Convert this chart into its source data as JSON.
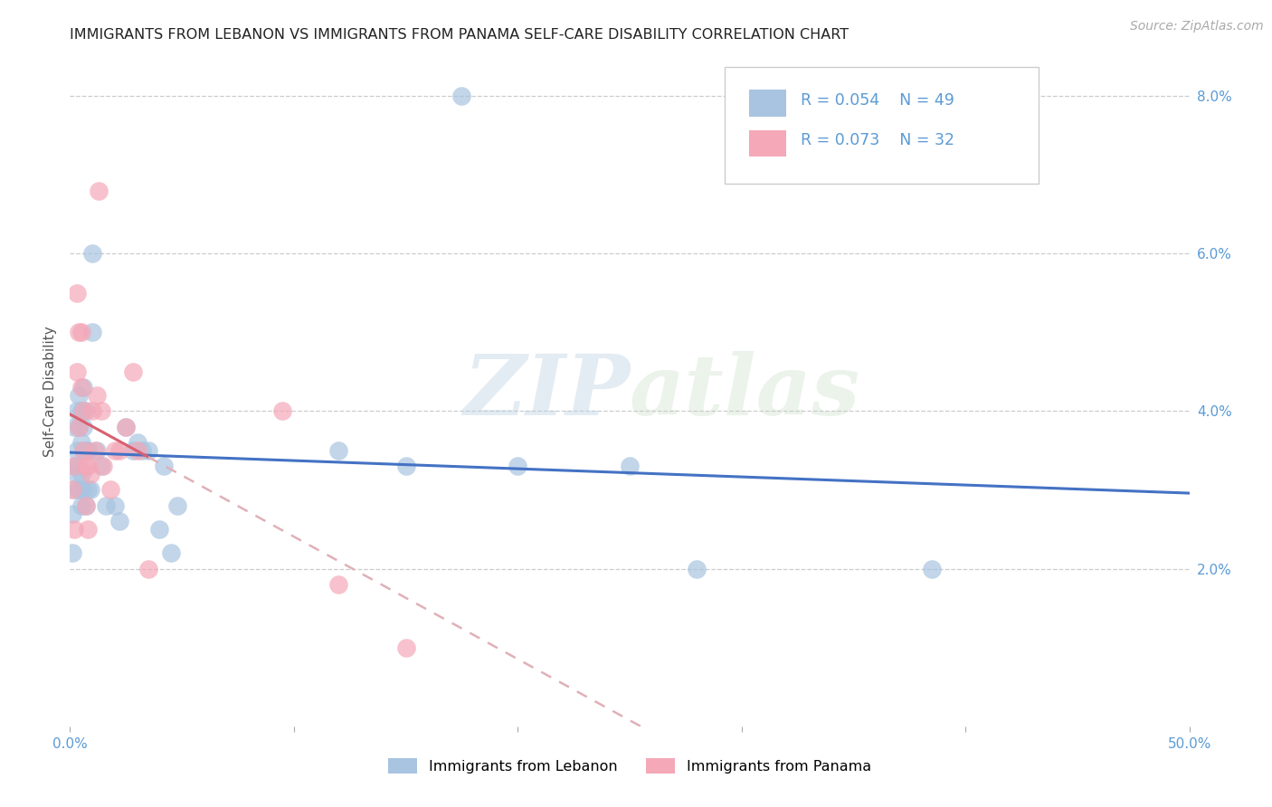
{
  "title": "IMMIGRANTS FROM LEBANON VS IMMIGRANTS FROM PANAMA SELF-CARE DISABILITY CORRELATION CHART",
  "source": "Source: ZipAtlas.com",
  "ylabel": "Self-Care Disability",
  "xlim": [
    0.0,
    0.5
  ],
  "ylim": [
    0.0,
    0.085
  ],
  "color_lebanon": "#a8c4e0",
  "color_panama": "#f4a8b8",
  "color_lebanon_line": "#4472c4",
  "color_panama_line": "#d96070",
  "color_panama_dash": "#e0b0b8",
  "watermark_color": "#d0e0ee",
  "lebanon_x": [
    0.001,
    0.001,
    0.002,
    0.002,
    0.002,
    0.003,
    0.003,
    0.003,
    0.004,
    0.004,
    0.004,
    0.004,
    0.005,
    0.005,
    0.005,
    0.005,
    0.006,
    0.006,
    0.006,
    0.006,
    0.007,
    0.007,
    0.007,
    0.008,
    0.008,
    0.009,
    0.01,
    0.01,
    0.012,
    0.014,
    0.016,
    0.02,
    0.022,
    0.025,
    0.028,
    0.03,
    0.032,
    0.035,
    0.04,
    0.042,
    0.045,
    0.048,
    0.12,
    0.15,
    0.175,
    0.2,
    0.25,
    0.28,
    0.385
  ],
  "lebanon_y": [
    0.027,
    0.022,
    0.03,
    0.033,
    0.038,
    0.032,
    0.035,
    0.04,
    0.042,
    0.038,
    0.033,
    0.03,
    0.04,
    0.036,
    0.032,
    0.028,
    0.043,
    0.038,
    0.035,
    0.03,
    0.04,
    0.035,
    0.028,
    0.035,
    0.03,
    0.03,
    0.06,
    0.05,
    0.035,
    0.033,
    0.028,
    0.028,
    0.026,
    0.038,
    0.035,
    0.036,
    0.035,
    0.035,
    0.025,
    0.033,
    0.022,
    0.028,
    0.035,
    0.033,
    0.08,
    0.033,
    0.033,
    0.02,
    0.02
  ],
  "panama_x": [
    0.001,
    0.002,
    0.002,
    0.003,
    0.003,
    0.004,
    0.004,
    0.005,
    0.005,
    0.006,
    0.006,
    0.007,
    0.007,
    0.008,
    0.008,
    0.009,
    0.01,
    0.011,
    0.012,
    0.013,
    0.014,
    0.015,
    0.018,
    0.02,
    0.022,
    0.025,
    0.028,
    0.03,
    0.035,
    0.095,
    0.12,
    0.15
  ],
  "panama_y": [
    0.03,
    0.033,
    0.025,
    0.045,
    0.055,
    0.038,
    0.05,
    0.043,
    0.05,
    0.04,
    0.035,
    0.033,
    0.028,
    0.033,
    0.025,
    0.032,
    0.04,
    0.035,
    0.042,
    0.068,
    0.04,
    0.033,
    0.03,
    0.035,
    0.035,
    0.038,
    0.045,
    0.035,
    0.02,
    0.04,
    0.018,
    0.01
  ]
}
